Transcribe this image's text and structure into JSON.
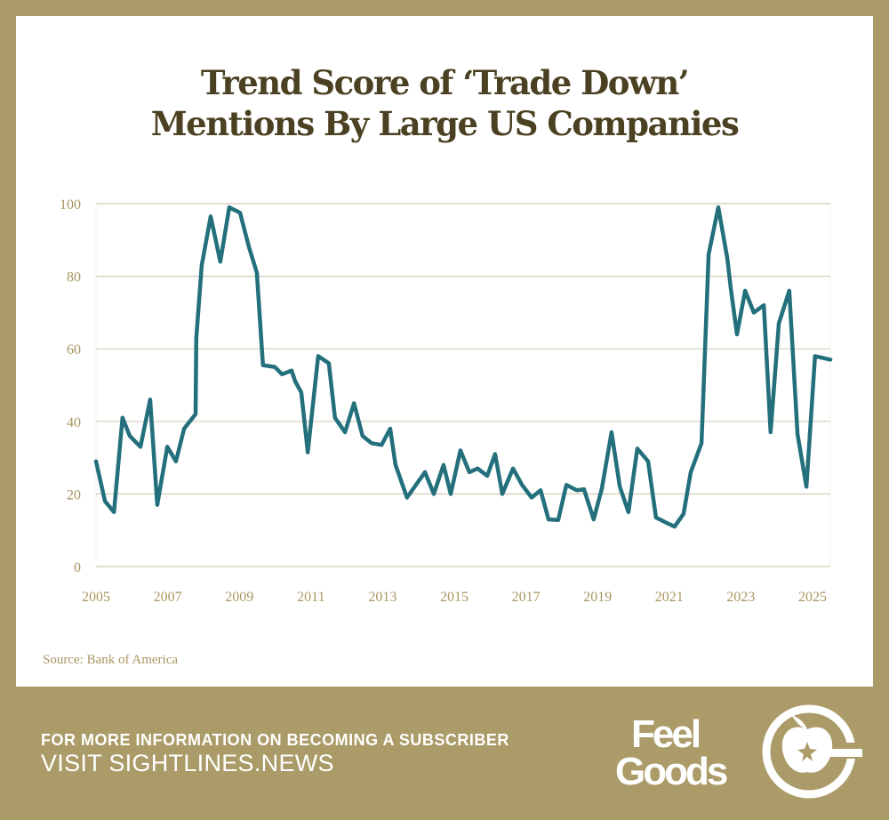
{
  "title_line1": "Trend Score of ‘Trade Down’",
  "title_line2": "Mentions By Large US Companies",
  "source": "Source: Bank of America",
  "footer": {
    "cta_line1": "FOR MORE INFORMATION ON BECOMING A SUBSCRIBER",
    "cta_line2": "VISIT SIGHTLINES.NEWS",
    "logo_text": "Feel Goods"
  },
  "colors": {
    "line": "#23707c",
    "gold": "#ab9b68",
    "tick": "#a89660",
    "grid": "#d3cbb8",
    "title": "#4b4122"
  },
  "chart_data": {
    "type": "line",
    "title": "Trend Score of ‘Trade Down’ Mentions By Large US Companies",
    "xlabel": "",
    "ylabel": "",
    "xlim": [
      2005,
      2025.5
    ],
    "ylim": [
      0,
      100
    ],
    "x_ticks": [
      2005,
      2007,
      2009,
      2011,
      2013,
      2015,
      2017,
      2019,
      2021,
      2023,
      2025
    ],
    "y_ticks": [
      0,
      20,
      40,
      60,
      80,
      100
    ],
    "grid": true,
    "series": [
      {
        "name": "Trend score",
        "x": [
          2005.0,
          2005.25,
          2005.5,
          2005.74,
          2005.94,
          2006.24,
          2006.51,
          2006.71,
          2006.99,
          2007.23,
          2007.46,
          2007.78,
          2007.8,
          2007.95,
          2008.2,
          2008.47,
          2008.72,
          2009.02,
          2009.27,
          2009.49,
          2009.66,
          2009.99,
          2010.19,
          2010.46,
          2010.56,
          2010.73,
          2010.91,
          2011.2,
          2011.5,
          2011.67,
          2011.95,
          2012.2,
          2012.44,
          2012.69,
          2012.97,
          2013.21,
          2013.36,
          2013.68,
          2014.18,
          2014.43,
          2014.7,
          2014.9,
          2015.17,
          2015.42,
          2015.65,
          2015.92,
          2016.14,
          2016.34,
          2016.64,
          2016.89,
          2017.16,
          2017.41,
          2017.63,
          2017.9,
          2018.13,
          2018.42,
          2018.62,
          2018.89,
          2019.12,
          2019.39,
          2019.62,
          2019.86,
          2020.11,
          2020.41,
          2020.63,
          2020.93,
          2021.15,
          2021.4,
          2021.6,
          2021.9,
          2022.1,
          2022.37,
          2022.62,
          2022.72,
          2022.89,
          2023.12,
          2023.36,
          2023.64,
          2023.83,
          2024.06,
          2024.35,
          2024.58,
          2024.83,
          2025.07,
          2025.5
        ],
        "y": [
          29,
          18,
          15,
          41,
          36,
          33,
          46,
          17,
          33,
          29,
          38,
          42,
          63,
          83,
          96.5,
          84,
          99,
          97.5,
          88,
          81,
          55.5,
          55,
          53,
          54,
          51,
          48,
          31.5,
          58,
          56,
          41,
          37,
          45,
          36,
          34,
          33.5,
          38,
          28,
          19,
          26,
          20,
          28,
          20,
          32,
          26,
          27,
          25,
          31,
          20,
          27,
          22.5,
          19,
          21,
          13,
          12.8,
          22.5,
          21,
          21.3,
          13,
          21.5,
          37,
          22,
          15,
          32.5,
          29,
          13.5,
          12,
          11,
          14.5,
          26,
          34,
          86,
          99,
          85,
          76.5,
          64,
          76,
          70,
          72,
          37,
          67,
          76,
          36.5,
          22,
          58,
          57
        ]
      }
    ]
  }
}
